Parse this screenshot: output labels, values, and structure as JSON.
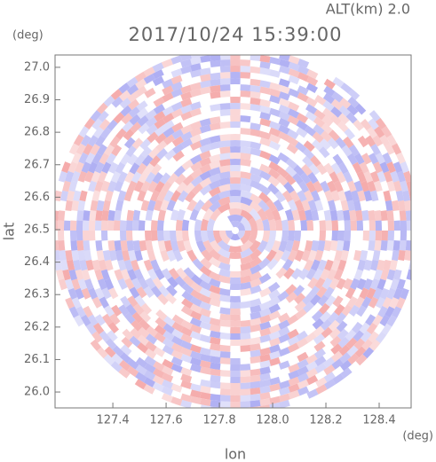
{
  "chart_data": {
    "type": "radar-ppi",
    "altitude_label": "ALT(km) 2.0",
    "title": "2017/10/24 15:39:00",
    "x_label": "lon",
    "y_label": "lat",
    "x_unit": "(deg)",
    "y_unit": "(deg)",
    "xlim": [
      127.183,
      128.52
    ],
    "ylim": [
      25.951,
      27.038
    ],
    "xticks": [
      127.4,
      127.6,
      127.8,
      {
        "value": 128,
        "label": "128.0"
      },
      128.2,
      128.4
    ],
    "yticks": [
      {
        "value": 26,
        "label": "26.0"
      },
      26.1,
      26.2,
      26.3,
      26.4,
      26.5,
      26.6,
      26.7,
      26.8,
      26.9,
      {
        "value": 27,
        "label": "27.0"
      }
    ],
    "colors": [
      "#f4a6a6",
      "#a9a9f2"
    ]
  }
}
